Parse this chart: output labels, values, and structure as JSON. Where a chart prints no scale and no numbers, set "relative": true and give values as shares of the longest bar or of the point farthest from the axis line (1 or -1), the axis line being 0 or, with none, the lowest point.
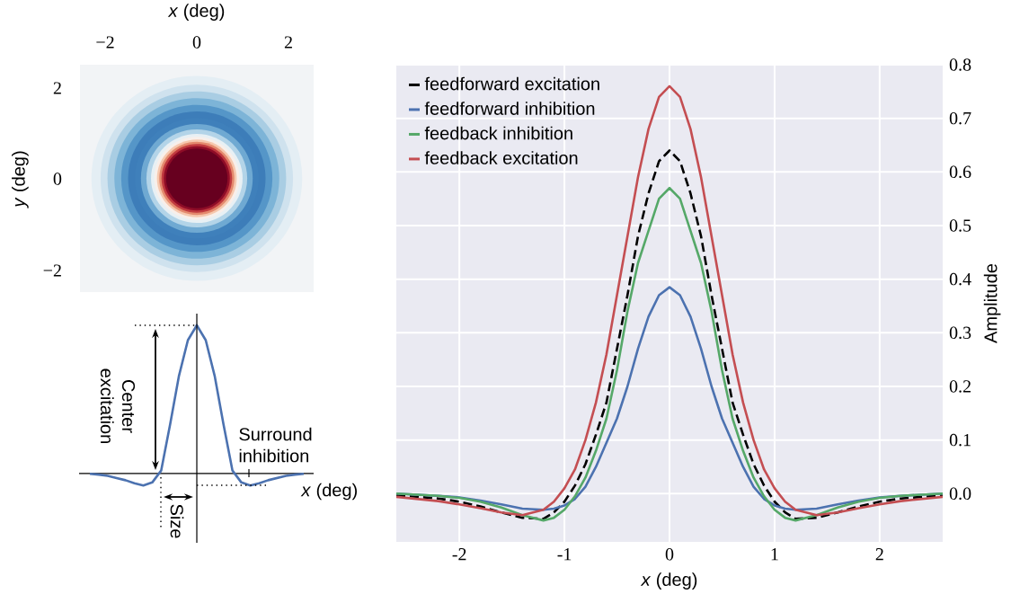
{
  "chart_data": [
    {
      "type": "other",
      "xlabel": "*x* (deg)",
      "ylabel": "*y* (deg)",
      "annotations": [
        "−2",
        "0",
        "2",
        "2",
        "0",
        "−2"
      ]
    },
    {
      "type": "line",
      "relative": true,
      "xlabel": "*x* (deg)",
      "color": "#4c72b0",
      "categories": [
        null,
        null,
        null,
        null,
        null,
        null,
        null,
        null,
        null,
        null,
        null,
        null,
        null,
        null,
        null,
        null,
        null,
        null,
        null,
        null,
        null,
        null,
        null,
        null,
        null
      ],
      "values": [
        -0.002,
        -0.007,
        -0.015,
        -0.03,
        -0.045,
        -0.065,
        -0.08,
        -0.06,
        0.02,
        0.33,
        0.66,
        0.9,
        1,
        0.9,
        0.66,
        0.33,
        0.02,
        -0.06,
        -0.08,
        -0.065,
        -0.045,
        -0.03,
        -0.015,
        -0.007,
        -0.002
      ],
      "annotations": [
        "Center excitation",
        "Surround inhibition",
        "Size"
      ]
    },
    {
      "type": "line",
      "xlabel": "*x* (deg)",
      "ylabel": "Amplitude",
      "xlim": [
        -2.6,
        2.6
      ],
      "ylim": [
        -0.09,
        0.8
      ],
      "xticks": [
        -2,
        -1,
        0,
        1,
        2
      ],
      "yticks": [
        {
          "value": 0,
          "label": "0.0"
        },
        0.1,
        0.2,
        0.3,
        0.4,
        0.5,
        0.6,
        0.7,
        0.8
      ],
      "grid": true,
      "legend": "top left",
      "x": [
        -2.6,
        -2.2,
        -2.0,
        -1.8,
        -1.6,
        -1.4,
        -1.2,
        -1.1,
        -1.0,
        -0.9,
        -0.8,
        -0.7,
        -0.6,
        -0.5,
        -0.4,
        -0.3,
        -0.2,
        -0.1,
        0,
        0.1,
        0.2,
        0.3,
        0.4,
        0.5,
        0.6,
        0.7,
        0.8,
        0.9,
        1.0,
        1.1,
        1.2,
        1.4,
        1.6,
        1.8,
        2.0,
        2.2,
        2.6
      ],
      "series": [
        {
          "name": "feedforward excitation",
          "color": "#000000",
          "line_style": "dashed",
          "values": [
            -0.003,
            -0.009,
            -0.015,
            -0.024,
            -0.035,
            -0.045,
            -0.047,
            -0.035,
            -0.015,
            0.015,
            0.055,
            0.11,
            0.17,
            0.27,
            0.37,
            0.48,
            0.56,
            0.62,
            0.64,
            0.62,
            0.56,
            0.48,
            0.37,
            0.27,
            0.17,
            0.11,
            0.055,
            0.015,
            -0.015,
            -0.035,
            -0.047,
            -0.045,
            -0.035,
            -0.024,
            -0.015,
            -0.009,
            -0.003
          ]
        },
        {
          "name": "feedforward inhibition",
          "color": "#4c72b0",
          "values": [
            0,
            -0.004,
            -0.007,
            -0.013,
            -0.02,
            -0.028,
            -0.03,
            -0.028,
            -0.022,
            -0.01,
            0.013,
            0.05,
            0.095,
            0.14,
            0.2,
            0.27,
            0.33,
            0.37,
            0.385,
            0.37,
            0.33,
            0.27,
            0.2,
            0.14,
            0.095,
            0.05,
            0.013,
            -0.01,
            -0.022,
            -0.028,
            -0.03,
            -0.028,
            -0.02,
            -0.013,
            -0.007,
            -0.004,
            0
          ]
        },
        {
          "name": "feedback inhibition",
          "color": "#55a868",
          "values": [
            0,
            -0.004,
            -0.008,
            -0.015,
            -0.026,
            -0.04,
            -0.05,
            -0.045,
            -0.03,
            -0.005,
            0.03,
            0.08,
            0.14,
            0.23,
            0.34,
            0.43,
            0.49,
            0.55,
            0.57,
            0.55,
            0.49,
            0.43,
            0.34,
            0.23,
            0.14,
            0.08,
            0.03,
            -0.005,
            -0.03,
            -0.045,
            -0.05,
            -0.04,
            -0.026,
            -0.015,
            -0.008,
            -0.004,
            0
          ]
        },
        {
          "name": "feedback excitation",
          "color": "#c44e52",
          "values": [
            -0.006,
            -0.014,
            -0.02,
            -0.027,
            -0.035,
            -0.04,
            -0.03,
            -0.015,
            0.01,
            0.045,
            0.1,
            0.17,
            0.26,
            0.37,
            0.48,
            0.59,
            0.68,
            0.74,
            0.76,
            0.74,
            0.68,
            0.59,
            0.48,
            0.37,
            0.26,
            0.17,
            0.1,
            0.045,
            0.01,
            -0.015,
            -0.03,
            -0.04,
            -0.035,
            -0.027,
            -0.02,
            -0.014,
            -0.006
          ]
        }
      ]
    }
  ]
}
